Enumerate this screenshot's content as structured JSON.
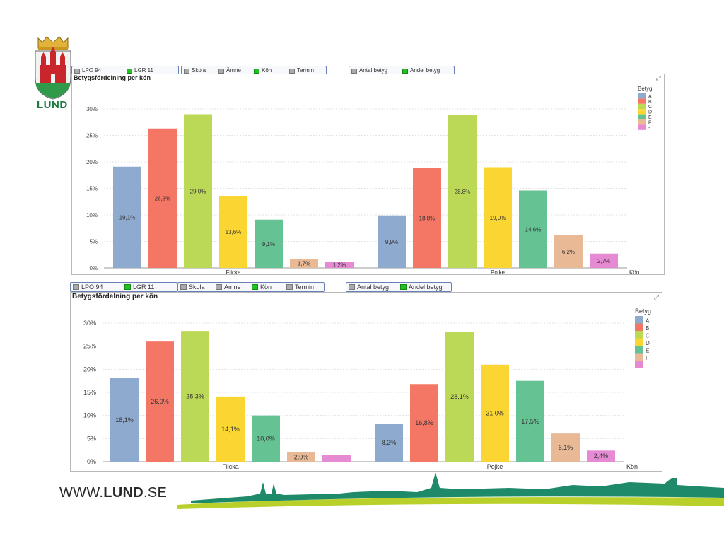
{
  "logo": {
    "text": "LUND",
    "icon": "lund-coat-of-arms-icon"
  },
  "charts": [
    {
      "toolbar": {
        "groups": [
          {
            "buttons": [
              {
                "label": "LPO 94",
                "active": false
              },
              {
                "label": "LGR 11",
                "active": true
              }
            ]
          },
          {
            "buttons": [
              {
                "label": "Skola",
                "active": false
              },
              {
                "label": "Ämne",
                "active": false
              },
              {
                "label": "Kön",
                "active": true
              },
              {
                "label": "Termin",
                "active": false
              }
            ]
          },
          {
            "buttons": [
              {
                "label": "Antal betyg",
                "active": false
              },
              {
                "label": "Andel betyg",
                "active": true
              }
            ]
          }
        ]
      },
      "title": "Betygsfördelning per kön"
    },
    {
      "toolbar": {
        "groups": [
          {
            "buttons": [
              {
                "label": "LPO 94",
                "active": false
              },
              {
                "label": "LGR 11",
                "active": true
              }
            ]
          },
          {
            "buttons": [
              {
                "label": "Skola",
                "active": false
              },
              {
                "label": "Ämne",
                "active": false
              },
              {
                "label": "Kön",
                "active": true
              },
              {
                "label": "Termin",
                "active": false
              }
            ]
          },
          {
            "buttons": [
              {
                "label": "Antal betyg",
                "active": false
              },
              {
                "label": "Andel betyg",
                "active": true
              }
            ]
          }
        ]
      },
      "title": "Betygsfördelning per kön"
    }
  ],
  "chart_data": [
    {
      "type": "bar",
      "title": "Betygsfördelning per kön",
      "categories": [
        "Flicka",
        "Pojke"
      ],
      "xlabel": "Kön",
      "ylabel": "",
      "ylim": [
        0,
        30
      ],
      "yticks": [
        "0%",
        "5%",
        "10%",
        "15%",
        "20%",
        "25%",
        "30%"
      ],
      "legend_title": "Betyg",
      "legend_position": "right",
      "series": [
        {
          "name": "A",
          "color": "#8eabcf",
          "values": [
            19.1,
            9.9
          ],
          "labels": [
            "19,1%",
            "9,9%"
          ]
        },
        {
          "name": "B",
          "color": "#f47766",
          "values": [
            26.3,
            18.8
          ],
          "labels": [
            "26,3%",
            "18,8%"
          ]
        },
        {
          "name": "C",
          "color": "#bcd857",
          "values": [
            29.0,
            28.8
          ],
          "labels": [
            "29,0%",
            "28,8%"
          ]
        },
        {
          "name": "D",
          "color": "#fbd633",
          "values": [
            13.6,
            19.0
          ],
          "labels": [
            "13,6%",
            "19,0%"
          ]
        },
        {
          "name": "E",
          "color": "#65c292",
          "values": [
            9.1,
            14.6
          ],
          "labels": [
            "9,1%",
            "14,6%"
          ]
        },
        {
          "name": "F",
          "color": "#e9b996",
          "values": [
            1.7,
            6.2
          ],
          "labels": [
            "1,7%",
            "6,2%"
          ]
        },
        {
          "name": "-",
          "color": "#e68ad3",
          "values": [
            1.2,
            2.7
          ],
          "labels": [
            "1,2%",
            "2,7%"
          ]
        }
      ]
    },
    {
      "type": "bar",
      "title": "Betygsfördelning per kön",
      "categories": [
        "Flicka",
        "Pojke"
      ],
      "xlabel": "Kön",
      "ylabel": "",
      "ylim": [
        0,
        30
      ],
      "yticks": [
        "0%",
        "5%",
        "10%",
        "15%",
        "20%",
        "25%",
        "30%"
      ],
      "legend_title": "Betyg",
      "legend_position": "right",
      "series": [
        {
          "name": "A",
          "color": "#8eabcf",
          "values": [
            18.1,
            8.2
          ],
          "labels": [
            "18,1%",
            "8,2%"
          ]
        },
        {
          "name": "B",
          "color": "#f47766",
          "values": [
            26.0,
            16.8
          ],
          "labels": [
            "26,0%",
            "16,8%"
          ]
        },
        {
          "name": "C",
          "color": "#bcd857",
          "values": [
            28.3,
            28.1
          ],
          "labels": [
            "28,3%",
            "28,1%"
          ]
        },
        {
          "name": "D",
          "color": "#fbd633",
          "values": [
            14.1,
            21.0
          ],
          "labels": [
            "14,1%",
            "21,0%"
          ]
        },
        {
          "name": "E",
          "color": "#65c292",
          "values": [
            10.0,
            17.5
          ],
          "labels": [
            "10,0%",
            "17,5%"
          ]
        },
        {
          "name": "F",
          "color": "#e9b996",
          "values": [
            2.0,
            6.1
          ],
          "labels": [
            "2,0%",
            "6,1%"
          ]
        },
        {
          "name": "-",
          "color": "#e68ad3",
          "values": [
            1.5,
            2.4
          ],
          "labels": [
            "",
            "2,4%"
          ]
        }
      ]
    }
  ],
  "footer": {
    "url_prefix": "WWW.",
    "url_bold": "LUND",
    "url_suffix": ".SE"
  }
}
